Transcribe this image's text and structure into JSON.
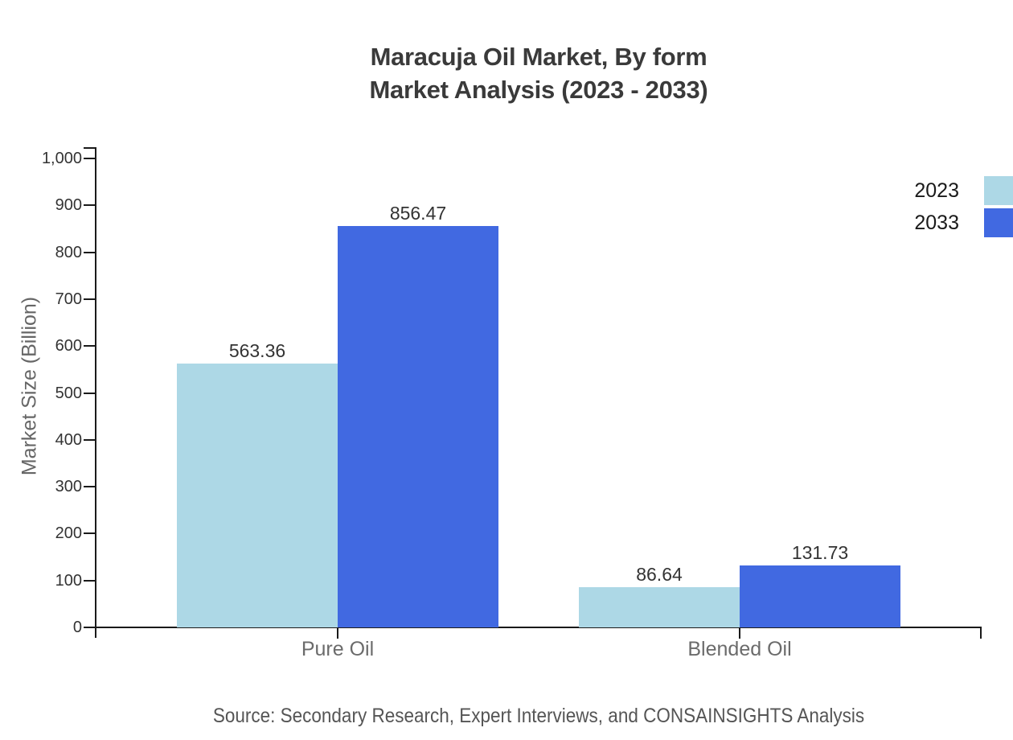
{
  "title": {
    "line1": "Maracuja Oil Market, By form",
    "line2": "Market Analysis (2023 - 2033)"
  },
  "source": "Source: Secondary Research, Expert Interviews, and CONSAINSIGHTS Analysis",
  "colors": {
    "series_2023": "#ADD8E6",
    "series_2033": "#4169E1",
    "axis": "#1a1a1a",
    "title_text": "#3a3a3a",
    "tick_label": "#333333",
    "category_label": "#6b6b6b",
    "value_label": "#333333",
    "y_axis_title": "#666666",
    "legend_label": "#1a1a1a",
    "source_text": "#555555"
  },
  "chart_data": {
    "type": "bar",
    "title": "Maracuja Oil Market, By form Market Analysis (2023 - 2033)",
    "categories": [
      "Pure Oil",
      "Blended Oil"
    ],
    "series": [
      {
        "name": "2023",
        "color": "#ADD8E6",
        "values": [
          563.36,
          86.64
        ]
      },
      {
        "name": "2033",
        "color": "#4169E1",
        "values": [
          856.47,
          131.73
        ]
      }
    ],
    "xlabel": "",
    "ylabel": "Market Size (Billion)",
    "ylim": [
      0,
      1000
    ],
    "ytick_step": 100,
    "ytick_labels": [
      "0",
      "100",
      "200",
      "300",
      "400",
      "500",
      "600",
      "700",
      "800",
      "900",
      "1,000"
    ],
    "grid": false,
    "legend_position": "top-right",
    "value_labels": true,
    "value_label_format": "2-decimals"
  }
}
